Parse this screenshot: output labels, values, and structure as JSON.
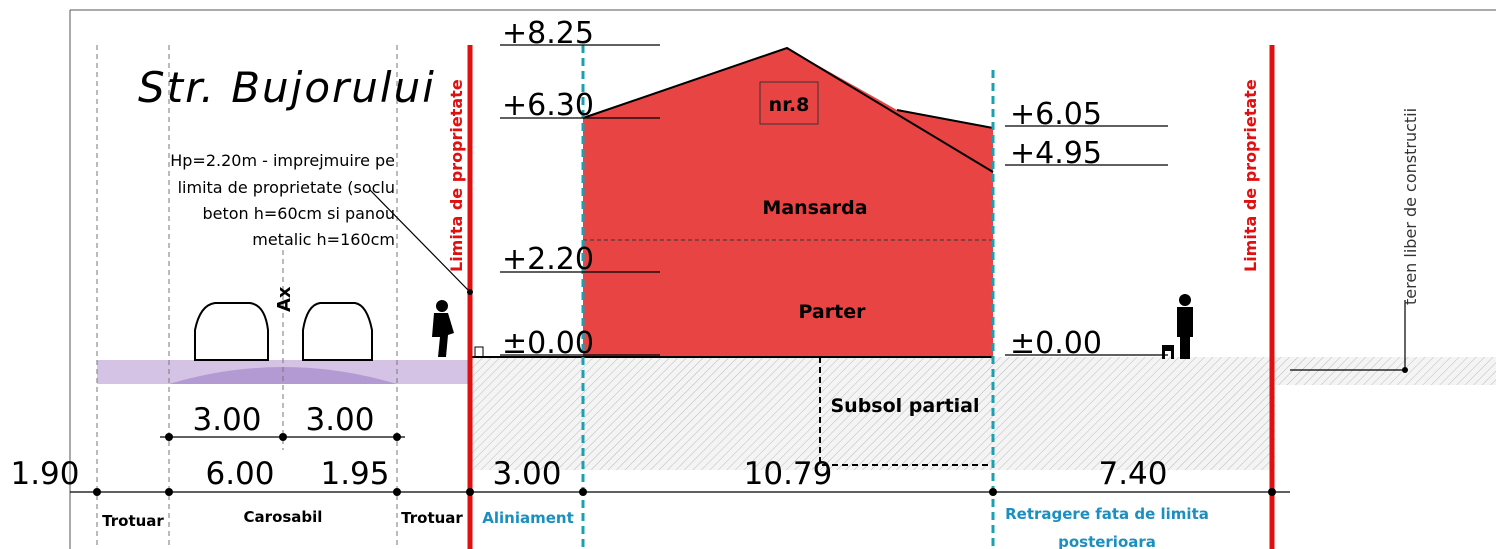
{
  "title": "Str. Bujorului",
  "note": [
    "Hp=2.20m - imprejmuire pe",
    "limita de proprietate (soclu",
    "beton h=60cm si panou",
    "metalic h=160cm"
  ],
  "property_limit": [
    "Limita de proprietate",
    "Limita de proprietate"
  ],
  "levels_left": [
    "+8.25",
    "+6.30",
    "+2.20",
    "±0.00"
  ],
  "levels_right": [
    "+6.05",
    "+4.95",
    "±0.00"
  ],
  "house_number": "nr.8",
  "rooms": [
    "Mansarda",
    "Parter",
    "Subsol partial"
  ],
  "axis_label": "Ax",
  "dimensions_top": [
    "3.00",
    "3.00"
  ],
  "dimensions_bottom": [
    "1.90",
    "6.00",
    "1.95",
    "3.00",
    "10.79",
    "7.40"
  ],
  "zones": [
    "Trotuar",
    "Carosabil",
    "Trotuar",
    "Aliniament",
    "Retragere fata de limita",
    "posterioara"
  ],
  "side_note": "teren liber de constructii"
}
